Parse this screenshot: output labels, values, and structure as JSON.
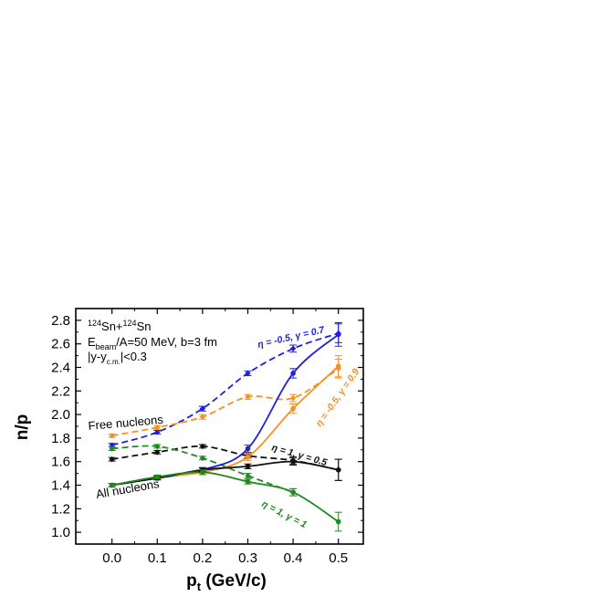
{
  "chart_data": {
    "type": "line",
    "title": "",
    "xlabel": "p",
    "xlabel_sub": "t",
    "xlabel_unit": " (GeV/c)",
    "ylabel": "n/p",
    "xlim": [
      -0.08,
      0.555
    ],
    "ylim": [
      0.9,
      2.9
    ],
    "xticks": [
      "0.0",
      "0.1",
      "0.2",
      "0.3",
      "0.4",
      "0.5"
    ],
    "yticks": [
      "1.0",
      "1.2",
      "1.4",
      "1.6",
      "1.8",
      "2.0",
      "2.2",
      "2.4",
      "2.6",
      "2.8"
    ],
    "annotations": {
      "reaction": {
        "sup1": "124",
        "el1": "Sn+",
        "sup2": "124",
        "el2": "Sn"
      },
      "energy": {
        "E": "E",
        "sub": "beam",
        "rest": "/A=50 MeV, b=3 fm"
      },
      "rapidity": {
        "pre": "|y-y",
        "sub": "c.m.",
        "post": "|<0.3"
      },
      "free_label": "Free nucleons",
      "all_label": "All nucleons"
    },
    "curve_labels": {
      "blue": "η = -0.5, γ = 0.7",
      "orange": "η = -0.5, γ = 0.9",
      "black": "η = 1, γ = 0.5",
      "green": "η = 1, γ = 1"
    },
    "colors": {
      "blue": "#1f1fe0",
      "orange": "#f39224",
      "black": "#111111",
      "green": "#1e8a1e"
    },
    "series": [
      {
        "group": "free",
        "color": "blue",
        "x": [
          0.0,
          0.1,
          0.2,
          0.3,
          0.4,
          0.5
        ],
        "y": [
          1.74,
          1.85,
          2.05,
          2.35,
          2.56,
          2.69
        ],
        "yerr": [
          0.015,
          0.015,
          0.02,
          0.02,
          0.03,
          0.08
        ]
      },
      {
        "group": "free",
        "color": "orange",
        "x": [
          0.0,
          0.1,
          0.2,
          0.3,
          0.4,
          0.5
        ],
        "y": [
          1.82,
          1.89,
          1.98,
          2.15,
          2.14,
          2.39
        ],
        "yerr": [
          0.015,
          0.015,
          0.02,
          0.02,
          0.03,
          0.08
        ]
      },
      {
        "group": "free",
        "color": "black",
        "x": [
          0.0,
          0.1,
          0.2,
          0.3,
          0.4,
          0.5
        ],
        "y": [
          1.62,
          1.68,
          1.73,
          1.65,
          1.61,
          1.53
        ],
        "yerr": [
          0.015,
          0.015,
          0.015,
          0.02,
          0.03,
          0.09
        ]
      },
      {
        "group": "free",
        "color": "green",
        "x": [
          0.0,
          0.1,
          0.2,
          0.3,
          0.4
        ],
        "y": [
          1.71,
          1.73,
          1.63,
          1.48,
          1.34
        ],
        "yerr": [
          0.015,
          0.015,
          0.015,
          0.02,
          0.03
        ]
      },
      {
        "group": "all",
        "color": "blue",
        "x": [
          0.0,
          0.1,
          0.2,
          0.3,
          0.4,
          0.5
        ],
        "y": [
          1.4,
          1.46,
          1.53,
          1.71,
          2.35,
          2.68
        ],
        "yerr": [
          0.015,
          0.015,
          0.02,
          0.03,
          0.04,
          0.1
        ]
      },
      {
        "group": "all",
        "color": "orange",
        "x": [
          0.0,
          0.1,
          0.2,
          0.3,
          0.4,
          0.5
        ],
        "y": [
          1.4,
          1.47,
          1.51,
          1.64,
          2.05,
          2.41
        ],
        "yerr": [
          0.015,
          0.015,
          0.02,
          0.03,
          0.04,
          0.09
        ]
      },
      {
        "group": "all",
        "color": "black",
        "x": [
          0.0,
          0.1,
          0.2,
          0.3,
          0.4,
          0.5
        ],
        "y": [
          1.4,
          1.46,
          1.53,
          1.56,
          1.6,
          1.53
        ],
        "yerr": [
          0.015,
          0.015,
          0.015,
          0.02,
          0.03,
          0.09
        ]
      },
      {
        "group": "all",
        "color": "green",
        "x": [
          0.0,
          0.1,
          0.2,
          0.3,
          0.4,
          0.5
        ],
        "y": [
          1.4,
          1.47,
          1.51,
          1.43,
          1.34,
          1.09
        ],
        "yerr": [
          0.015,
          0.015,
          0.02,
          0.02,
          0.03,
          0.08
        ]
      }
    ]
  }
}
